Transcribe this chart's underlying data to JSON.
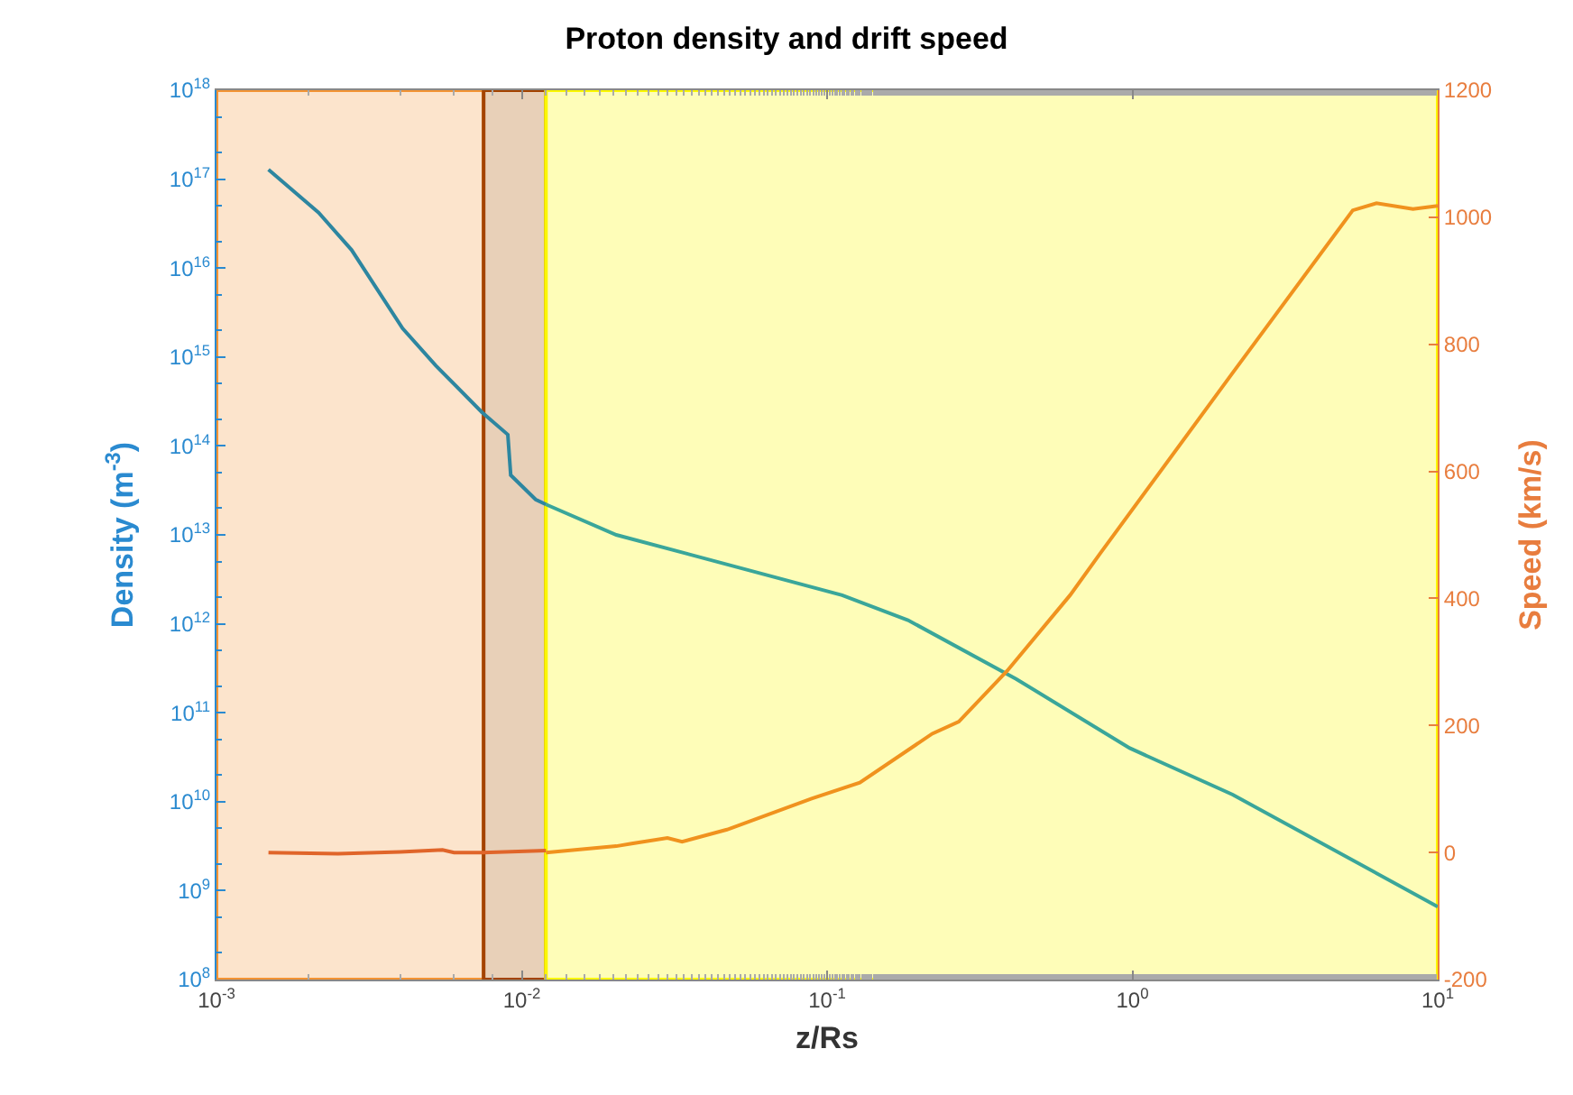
{
  "chart_data": {
    "type": "line",
    "title": "Proton density and drift speed",
    "xlabel": "z/Rs",
    "ylabel": "Density (m$^{-3}$)",
    "y2label": "Speed (km/s)",
    "log": "xy",
    "marker": "none",
    "line_style": "solid",
    "xlim": [
      0.001,
      10
    ],
    "xticks": [
      {
        "value": 0.001,
        "label": "10$^{-3}$"
      },
      {
        "value": 0.01,
        "label": "10$^{-2}$"
      },
      {
        "value": 0.1,
        "label": "10$^{-1}$"
      },
      {
        "value": 1,
        "label": "10$^{0}$"
      },
      {
        "value": 10,
        "label": "10$^{1}$"
      }
    ],
    "ylim": [
      100000000.0,
      1e+18
    ],
    "yticks": [
      {
        "value": 100000000.0,
        "label": "10$^{8}$"
      },
      {
        "value": 1000000000.0,
        "label": "10$^{9}$"
      },
      {
        "value": 10000000000.0,
        "label": "10$^{10}$"
      },
      {
        "value": 100000000000.0,
        "label": "10$^{11}$"
      },
      {
        "value": 1000000000000.0,
        "label": "10$^{12}$"
      },
      {
        "value": 10000000000000.0,
        "label": "10$^{13}$"
      },
      {
        "value": 100000000000000.0,
        "label": "10$^{14}$"
      },
      {
        "value": 1000000000000000.0,
        "label": "10$^{15}$"
      },
      {
        "value": 1e+16,
        "label": "10$^{16}$"
      },
      {
        "value": 1e+17,
        "label": "10$^{17}$"
      },
      {
        "value": 1e+18,
        "label": "10$^{18}$"
      }
    ],
    "y2lim": [
      -200,
      1200
    ],
    "y2ticks": [
      -200,
      0,
      200,
      400,
      600,
      800,
      1000,
      1200
    ],
    "bands": [
      {
        "axis": "x",
        "from": 0.001,
        "to": 0.0075,
        "color": "#fce4cc"
      },
      {
        "axis": "x",
        "from": 0.0075,
        "to": 0.012,
        "color": "#e8d0b8"
      },
      {
        "axis": "x",
        "from": 0.012,
        "to": 10,
        "color": "#fefdb8"
      }
    ],
    "series": [
      {
        "color": "#2d86a0",
        "x": [
          0.00148,
          0.00216,
          0.00277,
          0.00407,
          0.00523,
          0.0074,
          0.009,
          0.0092,
          0.0111,
          0.012
        ],
        "values": [
          1.28e+17,
          4.2e+16,
          1.6e+16,
          2100000000000000.0,
          800000000000000.0,
          240000000000000.0,
          134000000000000.0,
          47000000000000.0,
          25000000000000.0,
          22000000000000.0
        ]
      },
      {
        "color": "#3aa69a",
        "x": [
          0.012,
          0.0204,
          0.112,
          0.184,
          0.416,
          0.98,
          2.13,
          10
        ],
        "values": [
          22000000000000.0,
          10000000000000.0,
          2100000000000.0,
          1100000000000.0,
          240000000000.0,
          40000000000.0,
          12000000000.0,
          660000000.0
        ]
      },
      {
        "color": "#e0652a",
        "axis": "y2",
        "x": [
          0.00148,
          0.0025,
          0.004,
          0.0055,
          0.006,
          0.0075,
          0.012
        ],
        "values": [
          0,
          -2,
          1,
          4,
          0,
          0,
          3
        ]
      },
      {
        "color": "#f0921e",
        "axis": "y2",
        "x": [
          0.012,
          0.0204,
          0.0229,
          0.03,
          0.0335,
          0.047,
          0.089,
          0.128,
          0.221,
          0.27,
          0.389,
          0.625,
          0.785,
          2.13,
          5.27,
          6.3,
          8.3,
          10
        ],
        "values": [
          0,
          10,
          14,
          23,
          17,
          36,
          85,
          110,
          187,
          206,
          286,
          405,
          471,
          755,
          1011,
          1022,
          1013,
          1018
        ]
      }
    ]
  }
}
